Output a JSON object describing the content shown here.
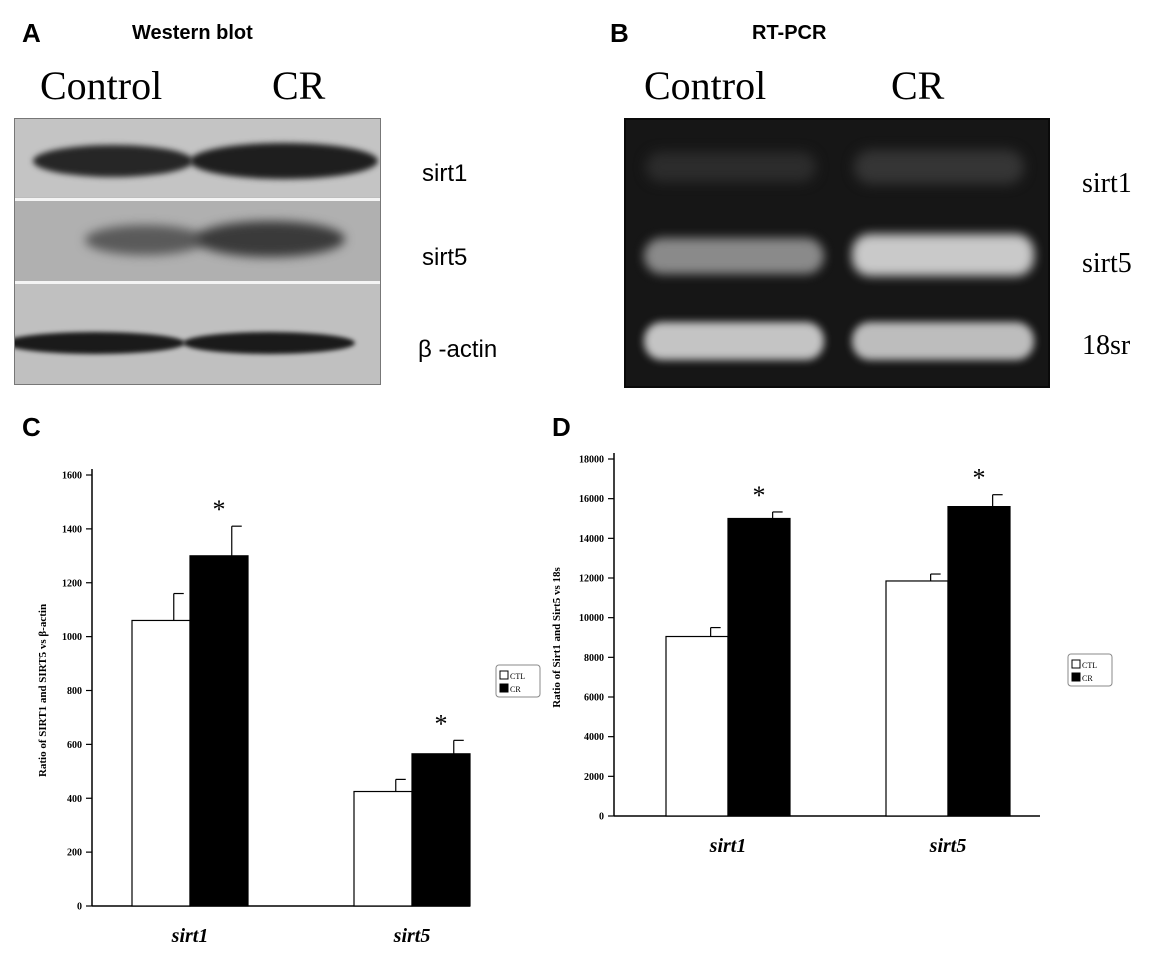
{
  "panels": {
    "a": {
      "letter": "A",
      "title": "Western blot",
      "columns": [
        "Control",
        "CR"
      ],
      "bands": [
        "sirt1",
        "sirt5",
        "β -actin"
      ]
    },
    "b": {
      "letter": "B",
      "title": "RT-PCR",
      "columns": [
        "Control",
        "CR"
      ],
      "bands": [
        "sirt1",
        "sirt5",
        "18sr"
      ]
    },
    "c": {
      "letter": "C"
    },
    "d": {
      "letter": "D"
    }
  },
  "chart_data": [
    {
      "panel": "C",
      "type": "bar",
      "categories": [
        "sirt1",
        "sirt5"
      ],
      "series": [
        {
          "name": "CTL",
          "values": [
            1060,
            425
          ],
          "errors": [
            100,
            45
          ],
          "color": "#ffffff"
        },
        {
          "name": "CR",
          "values": [
            1300,
            565
          ],
          "errors": [
            110,
            50
          ],
          "color": "#000000"
        }
      ],
      "significance": [
        "*",
        "*"
      ],
      "ylabel": "Ratio of SIRT1 and SIRT5 vs β-actin",
      "ylim": [
        0,
        1600
      ],
      "yticks": [
        0,
        200,
        400,
        600,
        800,
        1000,
        1200,
        1400,
        1600
      ],
      "legend": "right",
      "grid": false
    },
    {
      "panel": "D",
      "type": "bar",
      "categories": [
        "sirt1",
        "sirt5"
      ],
      "series": [
        {
          "name": "CTL",
          "values": [
            9050,
            11850
          ],
          "errors": [
            450,
            350
          ],
          "color": "#ffffff"
        },
        {
          "name": "CR",
          "values": [
            15000,
            15600
          ],
          "errors": [
            330,
            600
          ],
          "color": "#000000"
        }
      ],
      "significance": [
        "*",
        "*"
      ],
      "ylabel": "Ratio of Sirt1 and Sirt5 vs 18s",
      "ylim": [
        0,
        18000
      ],
      "yticks": [
        0,
        2000,
        4000,
        6000,
        8000,
        10000,
        12000,
        14000,
        16000,
        18000
      ],
      "legend": "right",
      "grid": false
    }
  ]
}
